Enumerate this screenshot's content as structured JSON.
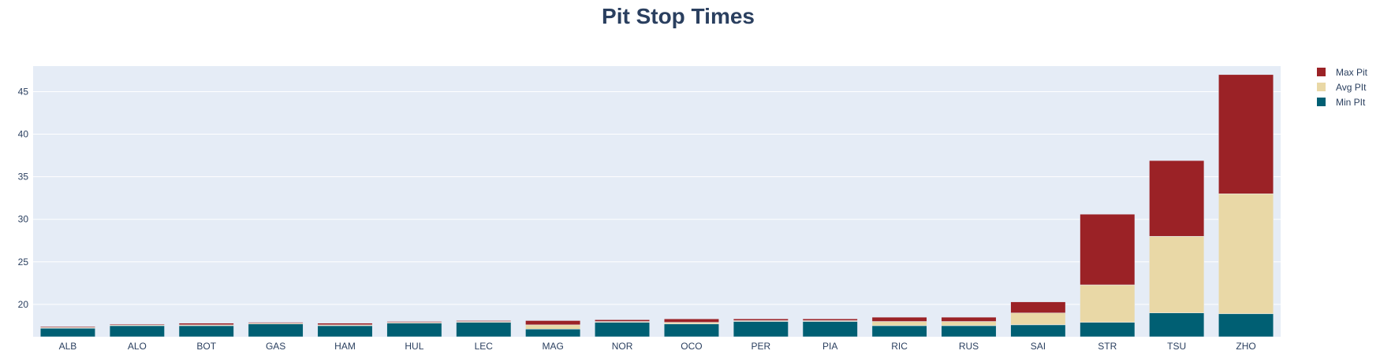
{
  "chart_data": {
    "type": "bar",
    "stacked": true,
    "title": "Pit Stop Times",
    "xlabel": "",
    "ylabel": "",
    "ylim": [
      16.2,
      48.0
    ],
    "yticks": [
      20,
      25,
      30,
      35,
      40,
      45
    ],
    "grid": true,
    "legend_position": "top-right",
    "categories": [
      "ALB",
      "ALO",
      "BOT",
      "GAS",
      "HAM",
      "HUL",
      "LEC",
      "MAG",
      "NOR",
      "OCO",
      "PER",
      "PIA",
      "RIC",
      "RUS",
      "SAI",
      "STR",
      "TSU",
      "ZHO"
    ],
    "series": [
      {
        "name": "Min PIt",
        "color": "#005f73",
        "cumulative": [
          17.2,
          17.5,
          17.5,
          17.7,
          17.5,
          17.8,
          17.9,
          17.1,
          17.9,
          17.7,
          18.0,
          18.0,
          17.5,
          17.5,
          17.6,
          17.9,
          19.0,
          18.9
        ]
      },
      {
        "name": "Avg PIt",
        "color": "#e9d8a6",
        "cumulative": [
          17.3,
          17.6,
          17.6,
          17.8,
          17.6,
          17.9,
          18.0,
          17.6,
          18.0,
          17.9,
          18.1,
          18.1,
          18.0,
          18.0,
          19.0,
          22.3,
          28.0,
          33.0
        ]
      },
      {
        "name": "Max Pit",
        "color": "#9b2226",
        "cumulative": [
          17.4,
          17.7,
          17.8,
          17.9,
          17.8,
          18.0,
          18.1,
          18.1,
          18.2,
          18.3,
          18.3,
          18.3,
          18.5,
          18.5,
          20.3,
          30.6,
          36.9,
          47.0
        ]
      }
    ],
    "legend_order": [
      "Max Pit",
      "Avg PIt",
      "Min PIt"
    ],
    "colors": {
      "plot_bg": "#e5ecf6",
      "grid": "#ffffff",
      "text": "#2a3f5f"
    }
  }
}
